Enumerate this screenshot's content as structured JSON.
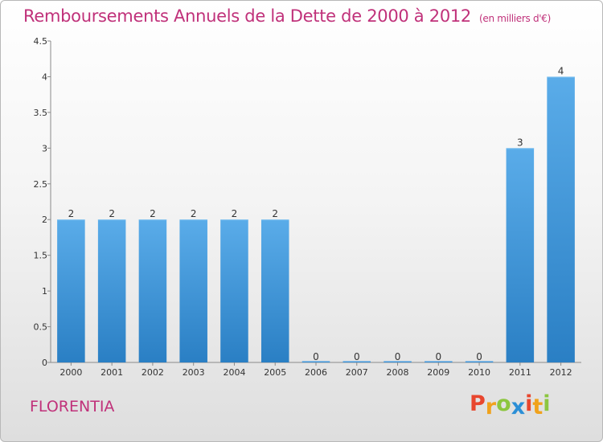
{
  "chart_data": {
    "type": "bar",
    "title": "Remboursements Annuels de la Dette de 2000 à 2012",
    "subtitle": "(en milliers d'€)",
    "categories": [
      "2000",
      "2001",
      "2002",
      "2003",
      "2004",
      "2005",
      "2006",
      "2007",
      "2008",
      "2009",
      "2010",
      "2011",
      "2012"
    ],
    "values": [
      2,
      2,
      2,
      2,
      2,
      2,
      0,
      0,
      0,
      0,
      0,
      3,
      4
    ],
    "y_ticks": [
      "0",
      "0.5",
      "1",
      "1.5",
      "2",
      "2.5",
      "3",
      "3.5",
      "4",
      "4.5"
    ],
    "ylim": [
      0,
      4.5
    ],
    "grid": false,
    "bar_color": "#3d95dc"
  },
  "footer": {
    "commune": "FLORENTIA",
    "brand_letters": [
      "P",
      "r",
      "o",
      "x",
      "i",
      "t",
      "i"
    ],
    "brand_colors": [
      "#e8462e",
      "#f0a21c",
      "#8cc63f",
      "#2b8fd6",
      "#e8462e",
      "#f0a21c",
      "#8cc63f"
    ]
  }
}
